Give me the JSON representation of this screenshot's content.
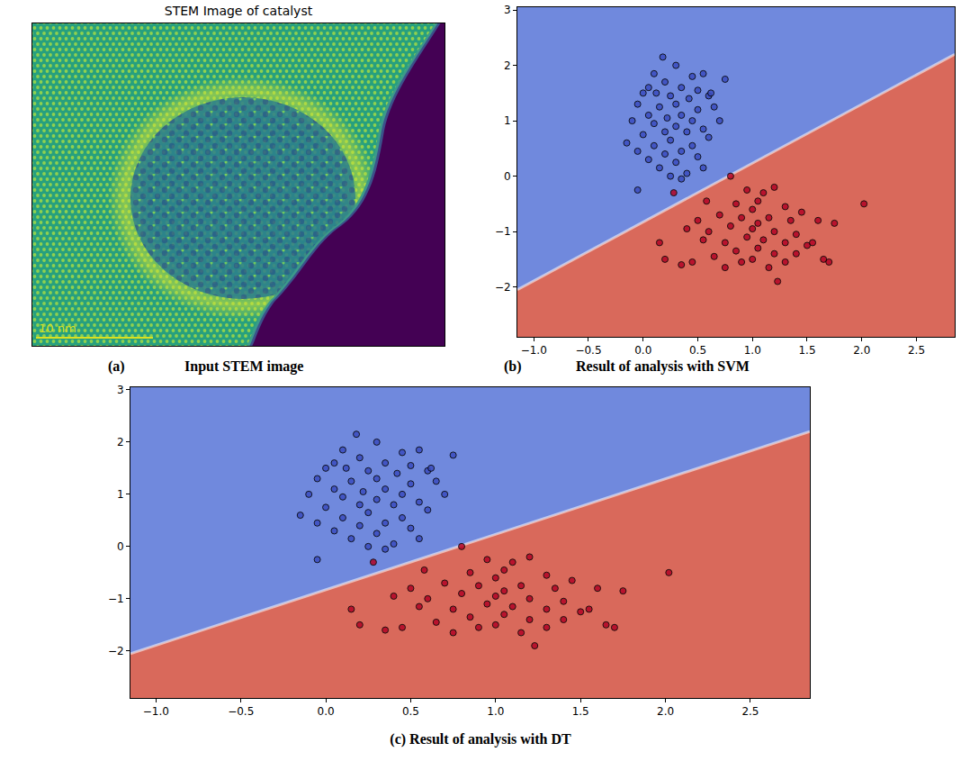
{
  "chart_data": [
    {
      "type": "image",
      "title": "STEM Image of catalyst",
      "scale_bar": "10 nm",
      "caption": {
        "letter": "(a)",
        "text": "Input STEM image"
      }
    },
    {
      "type": "scatter",
      "caption": {
        "letter": "(b)",
        "text": "Result of analysis with SVM"
      },
      "xlim": [
        -1.15,
        2.85
      ],
      "ylim": [
        -2.9,
        3.05
      ],
      "xticks": [
        {
          "value": -1,
          "label": "−1.0"
        },
        {
          "value": -0.5,
          "label": "−0.5"
        },
        {
          "value": 0,
          "label": "0.0"
        },
        0.5,
        {
          "value": 1,
          "label": "1.0"
        },
        1.5,
        {
          "value": 2,
          "label": "2.0"
        },
        2.5
      ],
      "yticks": [
        {
          "value": -2,
          "label": "−2"
        },
        {
          "value": -1,
          "label": "−1"
        },
        0,
        1,
        2,
        3
      ],
      "grid": false,
      "boundary": {
        "x": [
          -1.15,
          2.85
        ],
        "y": [
          -2.05,
          2.2
        ]
      },
      "regions": [
        {
          "color": "#7089dd"
        },
        {
          "color": "#d9695b"
        }
      ],
      "series": [
        {
          "color": "#3b4cc0",
          "x": [
            0.18,
            0.3,
            0.1,
            0.55,
            0.45,
            0.75,
            0.2,
            0.05,
            0.35,
            0.5,
            0.0,
            0.12,
            0.25,
            0.42,
            0.6,
            0.3,
            -0.05,
            0.15,
            0.5,
            0.65,
            0.05,
            0.22,
            0.35,
            0.45,
            0.7,
            -0.1,
            0.1,
            0.3,
            0.55,
            0.4,
            0.2,
            0.0,
            0.6,
            0.25,
            -0.15,
            0.1,
            0.45,
            0.35,
            -0.05,
            0.2,
            0.5,
            0.05,
            0.3,
            0.15,
            0.4,
            0.25,
            0.35,
            0.55,
            -0.05,
            0.62
          ],
          "y": [
            2.15,
            2.0,
            1.85,
            1.85,
            1.8,
            1.75,
            1.7,
            1.6,
            1.6,
            1.55,
            1.5,
            1.5,
            1.45,
            1.4,
            1.45,
            1.3,
            1.3,
            1.25,
            1.2,
            1.25,
            1.1,
            1.05,
            1.1,
            1.0,
            1.0,
            1.0,
            0.95,
            0.9,
            0.85,
            0.8,
            0.8,
            0.75,
            0.7,
            0.65,
            0.6,
            0.55,
            0.55,
            0.45,
            0.45,
            0.4,
            0.35,
            0.3,
            0.25,
            0.15,
            0.05,
            0.0,
            -0.05,
            0.15,
            -0.25,
            1.5
          ]
        },
        {
          "color": "#b40426",
          "x": [
            0.8,
            0.95,
            1.1,
            1.2,
            1.05,
            0.85,
            1.3,
            1.45,
            1.0,
            0.7,
            0.9,
            1.15,
            1.35,
            1.6,
            1.75,
            0.5,
            0.8,
            1.0,
            1.2,
            1.4,
            0.6,
            0.95,
            1.1,
            1.3,
            0.75,
            0.4,
            1.5,
            1.05,
            0.85,
            1.2,
            0.15,
            0.65,
            1.0,
            1.3,
            0.45,
            0.35,
            0.75,
            1.15,
            1.65,
            1.7,
            1.55,
            2.02,
            1.23,
            0.2,
            0.28,
            0.58,
            0.9,
            1.4,
            0.55,
            1.05
          ],
          "y": [
            0.0,
            -0.25,
            -0.3,
            -0.2,
            -0.45,
            -0.5,
            -0.55,
            -0.65,
            -0.6,
            -0.7,
            -0.75,
            -0.75,
            -0.8,
            -0.8,
            -0.85,
            -0.8,
            -0.9,
            -0.95,
            -1.0,
            -1.05,
            -1.0,
            -1.1,
            -1.15,
            -1.2,
            -1.2,
            -0.95,
            -1.25,
            -1.3,
            -1.35,
            -1.4,
            -1.2,
            -1.45,
            -1.5,
            -1.55,
            -1.55,
            -1.6,
            -1.65,
            -1.65,
            -1.5,
            -1.55,
            -1.2,
            -0.5,
            -1.9,
            -1.5,
            -0.3,
            -0.45,
            -1.55,
            -1.4,
            -1.15,
            -0.85
          ]
        }
      ]
    },
    {
      "type": "scatter",
      "caption": {
        "letter": "(c)",
        "text": "Result of analysis with DT"
      },
      "xlim": [
        -1.15,
        2.85
      ],
      "ylim": [
        -2.9,
        3.05
      ],
      "xticks": [
        {
          "value": -1,
          "label": "−1.0"
        },
        {
          "value": -0.5,
          "label": "−0.5"
        },
        {
          "value": 0,
          "label": "0.0"
        },
        0.5,
        {
          "value": 1,
          "label": "1.0"
        },
        1.5,
        {
          "value": 2,
          "label": "2.0"
        },
        2.5
      ],
      "yticks": [
        {
          "value": -2,
          "label": "−2"
        },
        {
          "value": -1,
          "label": "−1"
        },
        0,
        1,
        2,
        3
      ],
      "grid": false,
      "boundary": {
        "x": [
          -1.15,
          2.85
        ],
        "y": [
          -2.05,
          2.2
        ]
      },
      "regions": [
        {
          "color": "#7089dd"
        },
        {
          "color": "#d9695b"
        }
      ],
      "series": [
        {
          "color": "#3b4cc0",
          "x": [
            0.18,
            0.3,
            0.1,
            0.55,
            0.45,
            0.75,
            0.2,
            0.05,
            0.35,
            0.5,
            0.0,
            0.12,
            0.25,
            0.42,
            0.6,
            0.3,
            -0.05,
            0.15,
            0.5,
            0.65,
            0.05,
            0.22,
            0.35,
            0.45,
            0.7,
            -0.1,
            0.1,
            0.3,
            0.55,
            0.4,
            0.2,
            0.0,
            0.6,
            0.25,
            -0.15,
            0.1,
            0.45,
            0.35,
            -0.05,
            0.2,
            0.5,
            0.05,
            0.3,
            0.15,
            0.4,
            0.25,
            0.35,
            0.55,
            -0.05,
            0.62
          ],
          "y": [
            2.15,
            2.0,
            1.85,
            1.85,
            1.8,
            1.75,
            1.7,
            1.6,
            1.6,
            1.55,
            1.5,
            1.5,
            1.45,
            1.4,
            1.45,
            1.3,
            1.3,
            1.25,
            1.2,
            1.25,
            1.1,
            1.05,
            1.1,
            1.0,
            1.0,
            1.0,
            0.95,
            0.9,
            0.85,
            0.8,
            0.8,
            0.75,
            0.7,
            0.65,
            0.6,
            0.55,
            0.55,
            0.45,
            0.45,
            0.4,
            0.35,
            0.3,
            0.25,
            0.15,
            0.05,
            0.0,
            -0.05,
            0.15,
            -0.25,
            1.5
          ]
        },
        {
          "color": "#b40426",
          "x": [
            0.8,
            0.95,
            1.1,
            1.2,
            1.05,
            0.85,
            1.3,
            1.45,
            1.0,
            0.7,
            0.9,
            1.15,
            1.35,
            1.6,
            1.75,
            0.5,
            0.8,
            1.0,
            1.2,
            1.4,
            0.6,
            0.95,
            1.1,
            1.3,
            0.75,
            0.4,
            1.5,
            1.05,
            0.85,
            1.2,
            0.15,
            0.65,
            1.0,
            1.3,
            0.45,
            0.35,
            0.75,
            1.15,
            1.65,
            1.7,
            1.55,
            2.02,
            1.23,
            0.2,
            0.28,
            0.58,
            0.9,
            1.4,
            0.55,
            1.05
          ],
          "y": [
            0.0,
            -0.25,
            -0.3,
            -0.2,
            -0.45,
            -0.5,
            -0.55,
            -0.65,
            -0.6,
            -0.7,
            -0.75,
            -0.75,
            -0.8,
            -0.8,
            -0.85,
            -0.8,
            -0.9,
            -0.95,
            -1.0,
            -1.05,
            -1.0,
            -1.1,
            -1.15,
            -1.2,
            -1.2,
            -0.95,
            -1.25,
            -1.3,
            -1.35,
            -1.4,
            -1.2,
            -1.45,
            -1.5,
            -1.55,
            -1.55,
            -1.6,
            -1.65,
            -1.65,
            -1.5,
            -1.55,
            -1.2,
            -0.5,
            -1.9,
            -1.5,
            -0.3,
            -0.45,
            -1.55,
            -1.4,
            -1.15,
            -0.85
          ]
        }
      ]
    }
  ]
}
